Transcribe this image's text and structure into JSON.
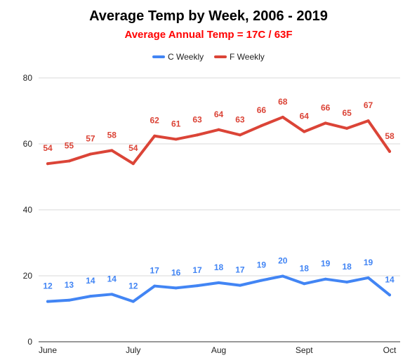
{
  "chart_data": {
    "type": "line",
    "title": "Average Temp by Week, 2006 - 2019",
    "subtitle": "Average Annual Temp = 17C / 63F",
    "xlabel": "",
    "ylabel": "",
    "ylim": [
      0,
      80
    ],
    "y_ticks": [
      "0",
      "20",
      "40",
      "60",
      "80"
    ],
    "x_tick_labels": [
      {
        "index": 0,
        "label": "June"
      },
      {
        "index": 4,
        "label": "July"
      },
      {
        "index": 8,
        "label": "Aug"
      },
      {
        "index": 12,
        "label": "Sept"
      },
      {
        "index": 16,
        "label": "Oct"
      }
    ],
    "grid": true,
    "legend_position": "top",
    "series": [
      {
        "name": "C Weekly",
        "color": "#4285F4",
        "values": [
          12.2,
          12.6,
          13.8,
          14.4,
          12.2,
          16.9,
          16.3,
          17.0,
          17.9,
          17.1,
          18.6,
          19.9,
          17.6,
          19.0,
          18.1,
          19.4,
          14.2
        ],
        "labels": [
          "12",
          "13",
          "14",
          "14",
          "12",
          "17",
          "16",
          "17",
          "18",
          "17",
          "19",
          "20",
          "18",
          "19",
          "18",
          "19",
          "14"
        ]
      },
      {
        "name": "F Weekly",
        "color": "#DB4437",
        "values": [
          54.0,
          54.8,
          56.9,
          58.0,
          54.0,
          62.4,
          61.4,
          62.7,
          64.3,
          62.7,
          65.5,
          68.1,
          63.7,
          66.3,
          64.7,
          67.0,
          57.7
        ],
        "labels": [
          "54",
          "55",
          "57",
          "58",
          "54",
          "62",
          "61",
          "63",
          "64",
          "63",
          "66",
          "68",
          "64",
          "66",
          "65",
          "67",
          "58"
        ]
      }
    ],
    "colors": {
      "title": "#000000",
      "subtitle": "#FF0000",
      "grid": "#D9D9D9",
      "axis": "#333333"
    }
  }
}
